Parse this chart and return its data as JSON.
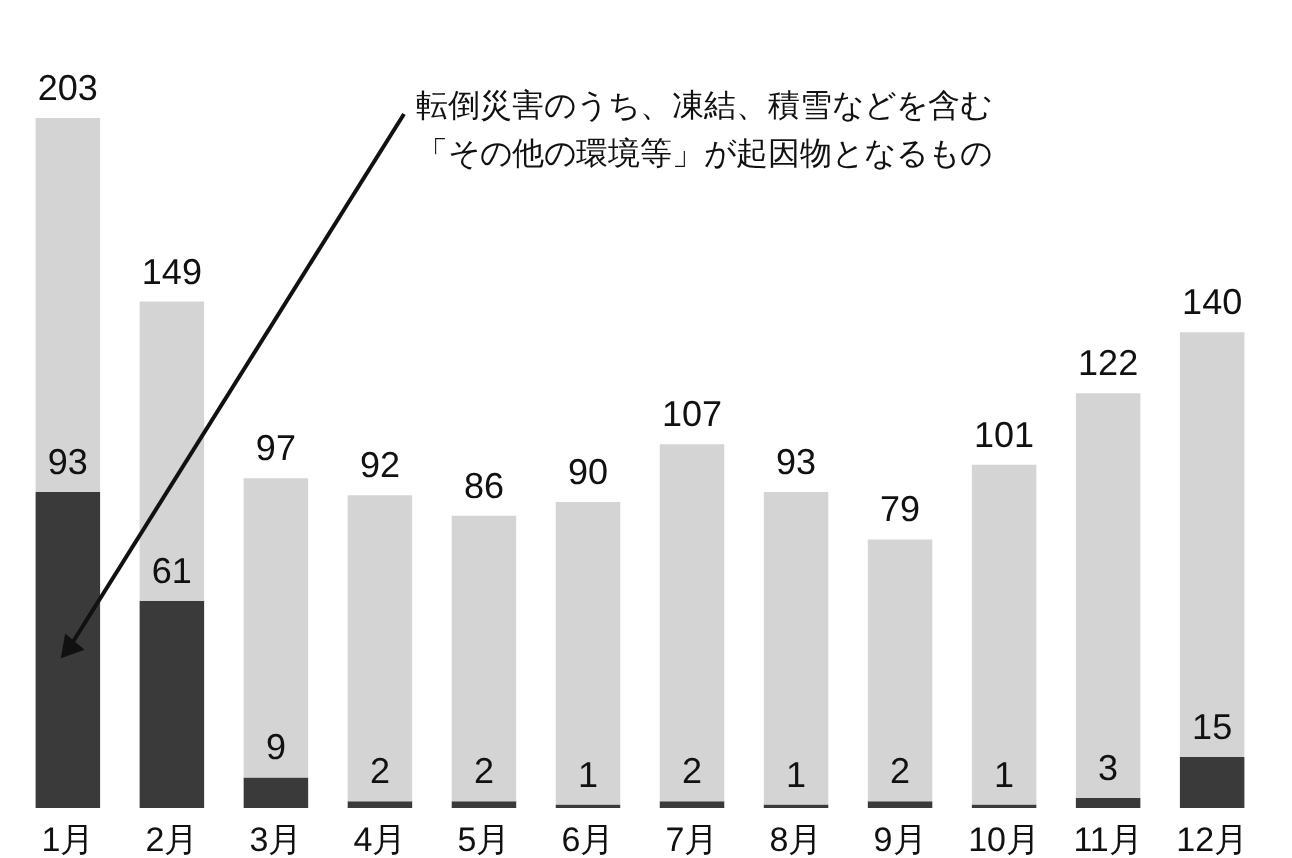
{
  "chart_data": {
    "type": "bar",
    "stacked": true,
    "categories": [
      "1月",
      "2月",
      "3月",
      "4月",
      "5月",
      "6月",
      "7月",
      "8月",
      "9月",
      "10月",
      "11月",
      "12月"
    ],
    "series": [
      {
        "color": "#3a3a3a",
        "values": [
          93,
          61,
          9,
          2,
          2,
          1,
          2,
          1,
          2,
          1,
          3,
          15
        ],
        "value_labels": [
          "93",
          "61",
          "9",
          "2",
          "2",
          "1",
          "2",
          "1",
          "2",
          "1",
          "3",
          "15"
        ]
      },
      {
        "color": "#d4d4d4",
        "values": [
          110,
          88,
          88,
          90,
          84,
          89,
          105,
          92,
          77,
          100,
          119,
          125
        ]
      }
    ],
    "totals": [
      "203",
      "149",
      "97",
      "92",
      "86",
      "90",
      "107",
      "93",
      "79",
      "101",
      "122",
      "140"
    ],
    "tick_labels": "x",
    "grid": false,
    "legend": false,
    "annotations": [
      "転倒災害のうち、凍結、積雪などを含む「その他の環境等」が起因物となるもの"
    ]
  }
}
